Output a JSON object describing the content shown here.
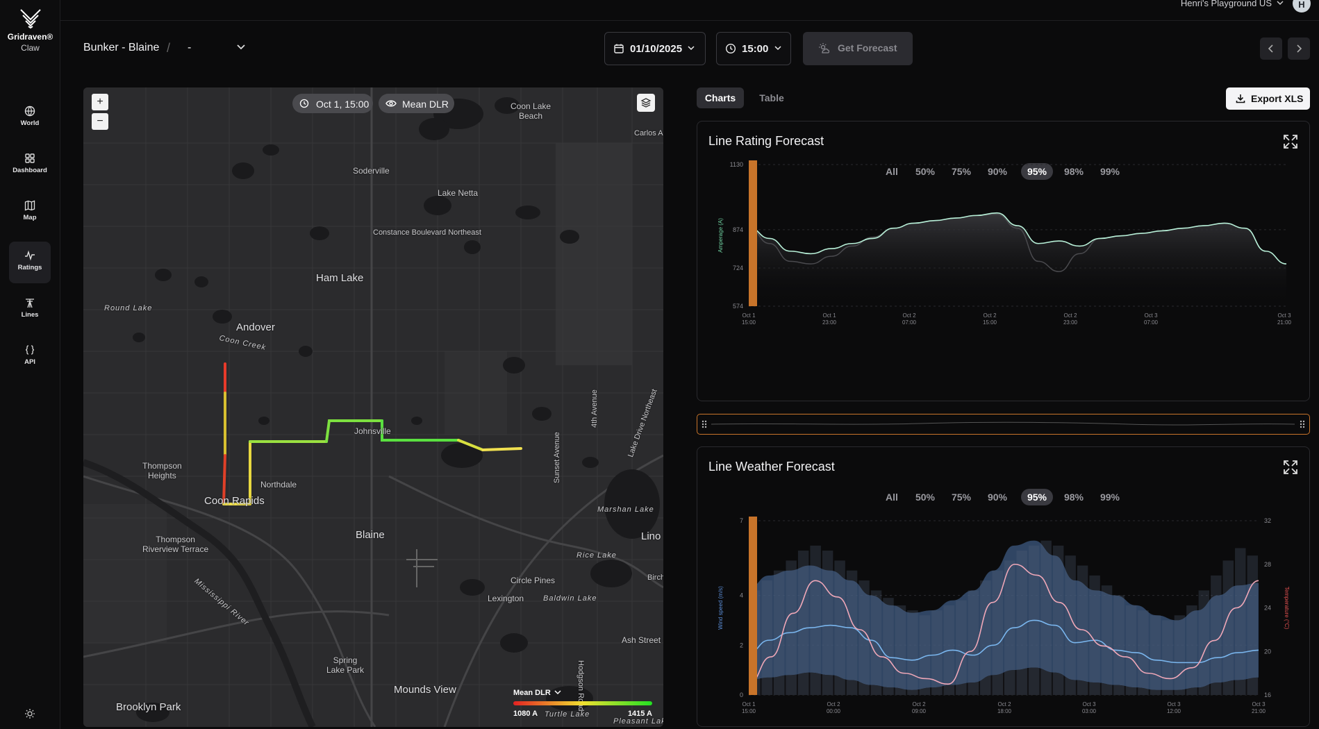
{
  "brand": {
    "name": "Gridraven®",
    "sub": "Claw"
  },
  "nav": [
    {
      "label": "World",
      "icon": "globe-icon"
    },
    {
      "label": "Dashboard",
      "icon": "dashboard-icon"
    },
    {
      "label": "Map",
      "icon": "map-icon"
    },
    {
      "label": "Ratings",
      "icon": "ratings-icon",
      "active": true
    },
    {
      "label": "Lines",
      "icon": "lines-icon"
    },
    {
      "label": "API",
      "icon": "api-icon"
    }
  ],
  "topbar": {
    "org": "Henri's Playground US",
    "avatar": "H"
  },
  "header": {
    "line": "Bunker - Blaine",
    "separator": "/",
    "segment": "-",
    "date": "01/10/2025",
    "time": "15:00",
    "get_forecast": "Get Forecast"
  },
  "map": {
    "time_pill": "Oct 1, 15:00",
    "layer_pill": "Mean DLR",
    "zoom_in": "+",
    "zoom_out": "−",
    "legend": {
      "title": "Mean DLR",
      "min": "1080 A",
      "max": "1415 A"
    },
    "labels": {
      "coon_lake_beach": "Coon Lake\nBeach",
      "carlos": "Carlos A",
      "soderville": "Soderville",
      "lake_netta": "Lake Netta",
      "constance": "Constance Boulevard Northeast",
      "ham_lake": "Ham Lake",
      "round_lake": "Round Lake",
      "andover": "Andover",
      "coon_creek": "Coon Creek",
      "johnsville": "Johnsville",
      "fourth_ave": "4th Avenue",
      "lake_drive": "Lake Drive Northeast",
      "thompson_heights": "Thompson\nHeights",
      "northdale": "Northdale",
      "coon_rapids": "Coon Rapids",
      "sunset_ave": "Sunset Avenue",
      "marshan_lake": "Marshan Lake",
      "blaine": "Blaine",
      "lino": "Lino",
      "thompson_rt": "Thompson\nRiverview Terrace",
      "rice_lake": "Rice Lake",
      "birch": "Birch",
      "mississippi": "Mississippi River",
      "circle_pines": "Circle Pines",
      "baldwin_lake": "Baldwin Lake",
      "lexington": "Lexington",
      "ash_street": "Ash Street",
      "spring_lake_park": "Spring\nLake Park",
      "hodgson": "Hodgson Road",
      "mounds_view": "Mounds View",
      "turtle_lake": "Turtle Lake",
      "brooklyn_park": "Brooklyn Park",
      "pleasant_lake": "Pleasant Lak"
    }
  },
  "panel": {
    "tabs": [
      "Charts",
      "Table"
    ],
    "active_tab": "Charts",
    "export": "Export XLS",
    "percentiles": [
      "All",
      "50%",
      "75%",
      "90%",
      "95%",
      "98%",
      "99%"
    ],
    "active_percentile": "95%"
  },
  "colors": {
    "accent": "#c8742a",
    "rating_line": "#b8f0d8",
    "wind": "#7ab6ee",
    "temp": "#f0a8b8",
    "band": "#3d5a80"
  },
  "chart_data": [
    {
      "type": "line",
      "title": "Line Rating Forecast",
      "ylabel": "Amperage (A)",
      "yticks": [
        "1130",
        "874",
        "724",
        "574"
      ],
      "ylim": [
        574,
        1130
      ],
      "x_ticks": [
        [
          "Oct 1",
          "15:00"
        ],
        [
          "Oct 1",
          "23:00"
        ],
        [
          "Oct 2",
          "07:00"
        ],
        [
          "Oct 2",
          "15:00"
        ],
        [
          "Oct 2",
          "23:00"
        ],
        [
          "Oct 3",
          "07:00"
        ],
        [
          "Oct 3",
          "21:00"
        ]
      ],
      "series": [
        {
          "values": [
            884,
            840,
            790,
            780,
            800,
            820,
            840,
            880,
            900,
            910,
            920,
            930,
            940,
            890,
            820,
            830,
            810,
            840,
            850,
            860,
            870,
            880,
            890,
            900,
            880,
            790,
            740
          ]
        },
        {
          "values": [
            884,
            820,
            750,
            740,
            770,
            810,
            845,
            880,
            900,
            910,
            920,
            930,
            935,
            880,
            750,
            710,
            780,
            840,
            850,
            860,
            870,
            880,
            890,
            900,
            880,
            790,
            740
          ]
        }
      ]
    },
    {
      "type": "line",
      "title": "Line Weather Forecast",
      "ylabel": "Wind speed (m/s)",
      "y2label": "Temperature (°C)",
      "yticks": [
        "7",
        "4",
        "2",
        "0"
      ],
      "y2ticks": [
        "32",
        "28",
        "24",
        "20",
        "16"
      ],
      "x_ticks": [
        [
          "Oct 1",
          "15:00"
        ],
        [
          "Oct 2",
          "00:00"
        ],
        [
          "Oct 2",
          "09:00"
        ],
        [
          "Oct 2",
          "18:00"
        ],
        [
          "Oct 3",
          "03:00"
        ],
        [
          "Oct 3",
          "12:00"
        ],
        [
          "Oct 3",
          "21:00"
        ]
      ],
      "series": [
        {
          "values": [
            1.7,
            2.2,
            2.5,
            2.7,
            2.8,
            2.7,
            2.2,
            1.5,
            1.4,
            1.6,
            1.8,
            1.6,
            2.0,
            2.7,
            3.0,
            2.8,
            2.1,
            2.2,
            1.8,
            1.7,
            1.4,
            1.3,
            1.3,
            1.5,
            1.7,
            1.8
          ]
        },
        {
          "values": [
            17.0,
            19.5,
            23.5,
            26.5,
            25.0,
            22.0,
            19.5,
            18.0,
            17.5,
            17.0,
            20.0,
            24.5,
            28.0,
            27.0,
            24.5,
            22.0,
            20.5,
            19.5,
            18.0,
            17.5,
            18.5,
            21.0,
            24.0,
            26.5
          ]
        }
      ]
    }
  ]
}
